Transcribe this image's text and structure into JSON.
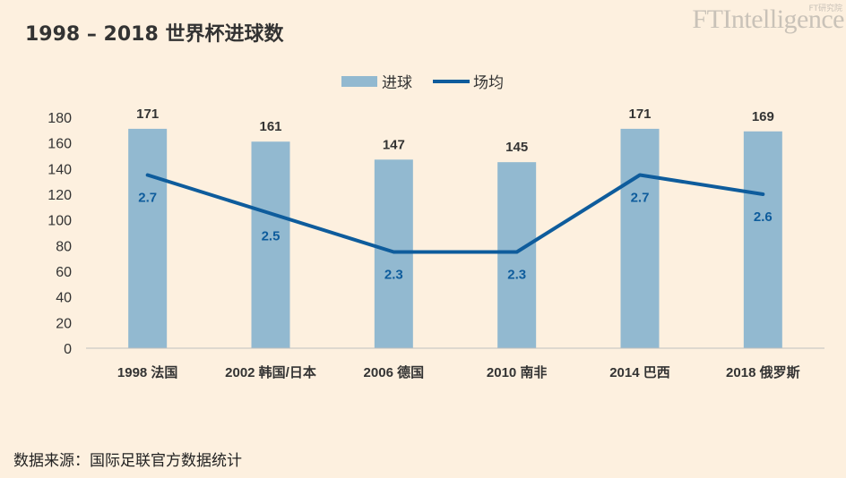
{
  "title": "1998 – 2018 世界杯进球数",
  "brand": {
    "main": "FTIntelligence",
    "sub": "FT研究院"
  },
  "source_note": "数据来源：国际足联官方数据统计",
  "colors": {
    "bar": "#92b9d0",
    "line": "#0e5c9c",
    "background": "#fdf0df"
  },
  "chart_data": {
    "type": "bar",
    "categories": [
      "1998 法国",
      "2002 韩国/日本",
      "2006 德国",
      "2010 南非",
      "2014 巴西",
      "2018 俄罗斯"
    ],
    "series": [
      {
        "name": "进球",
        "type": "bar",
        "values": [
          171,
          161,
          147,
          145,
          171,
          169
        ]
      },
      {
        "name": "场均",
        "type": "line",
        "values": [
          2.7,
          2.5,
          2.3,
          2.3,
          2.7,
          2.6
        ]
      }
    ],
    "ylim": [
      0,
      180
    ],
    "yticks": [
      0,
      20,
      40,
      60,
      80,
      100,
      120,
      140,
      160,
      180
    ],
    "legend": "top-center",
    "grid": false
  }
}
